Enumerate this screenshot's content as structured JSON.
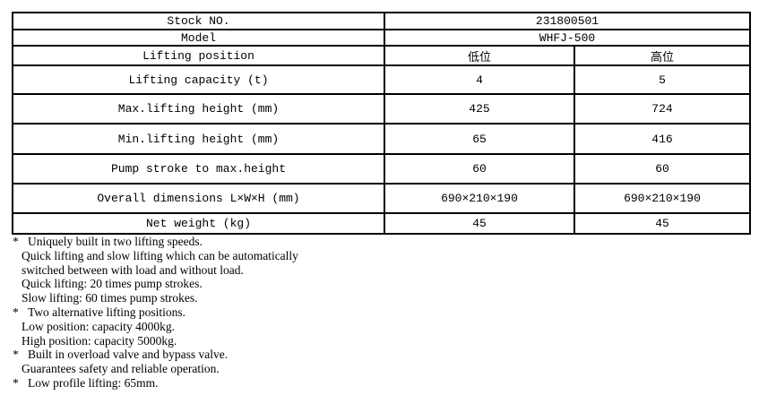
{
  "table": {
    "header_columns": {
      "low_label": "低位",
      "high_label": "高位"
    },
    "rows": [
      {
        "label": "Stock NO.",
        "value": "231800501"
      },
      {
        "label": "Model",
        "value": "WHFJ-500"
      },
      {
        "label": "Lifting position",
        "low": "低位",
        "high": "高位"
      },
      {
        "label": "Lifting capacity (t)",
        "low": "4",
        "high": "5"
      },
      {
        "label": "Max.lifting height (mm)",
        "low": "425",
        "high": "724"
      },
      {
        "label": "Min.lifting height (mm)",
        "low": "65",
        "high": "416"
      },
      {
        "label": "Pump stroke to max.height",
        "low": "60",
        "high": "60"
      },
      {
        "label": "Overall dimensions L×W×H (mm)",
        "low": "690×210×190",
        "high": "690×210×190"
      },
      {
        "label": "Net weight (kg)",
        "low": "45",
        "high": "45"
      }
    ]
  },
  "notes": {
    "bullet": "*",
    "items": [
      {
        "lines": [
          "Uniquely built in two lifting speeds.",
          "Quick lifting and slow lifting which can be automatically",
          "switched between with load and without load.",
          "Quick lifting: 20 times pump strokes.",
          "Slow lifting: 60 times pump strokes."
        ]
      },
      {
        "lines": [
          "Two alternative lifting positions.",
          "Low position: capacity 4000kg.",
          "High position: capacity 5000kg."
        ]
      },
      {
        "lines": [
          "Built in overload valve and bypass valve.",
          "Guarantees safety and reliable operation."
        ]
      },
      {
        "lines": [
          "Low profile lifting: 65mm."
        ]
      }
    ]
  }
}
